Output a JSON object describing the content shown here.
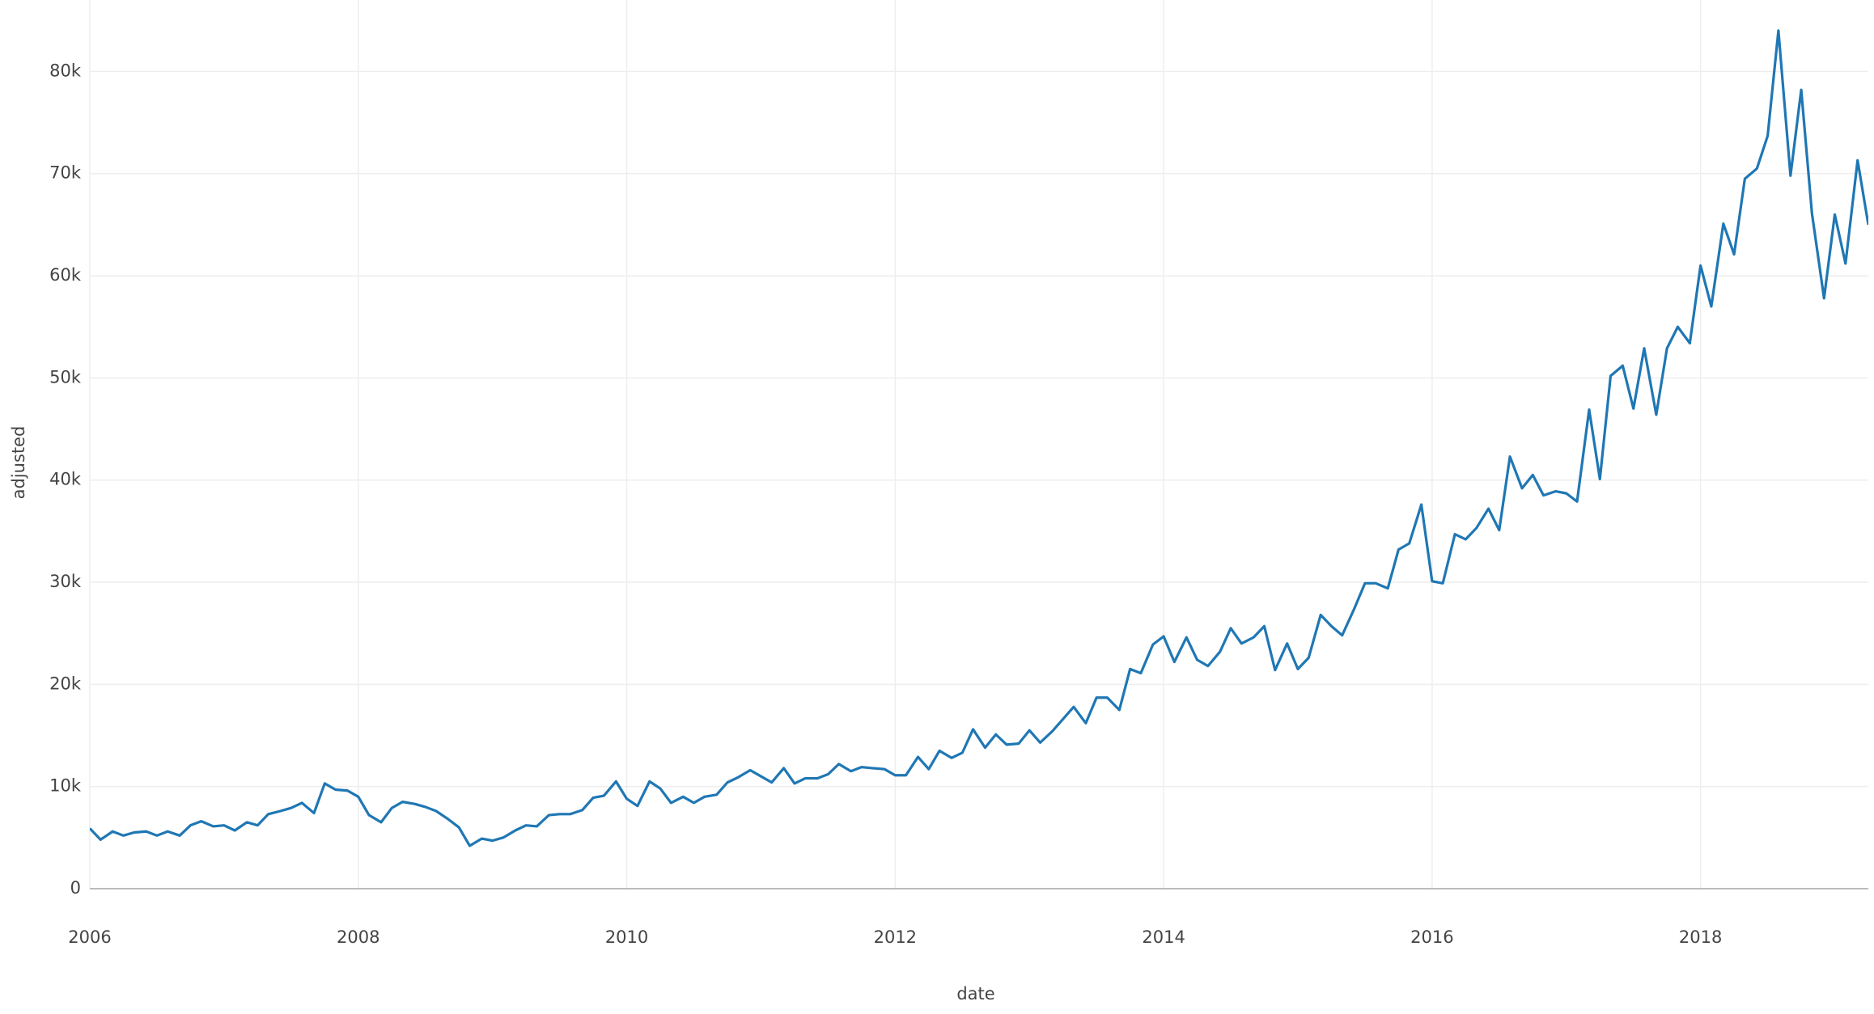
{
  "chart_data": {
    "type": "line",
    "x_label": "date",
    "y_label": "adjusted",
    "xlim": [
      2006,
      2019.25
    ],
    "xticks": [
      2006,
      2008,
      2010,
      2012,
      2014,
      2016,
      2018
    ],
    "ylim": [
      0,
      87000
    ],
    "yticks": [
      0,
      {
        "value": 10000,
        "label": "10k"
      },
      {
        "value": 20000,
        "label": "20k"
      },
      {
        "value": 30000,
        "label": "30k"
      },
      {
        "value": 40000,
        "label": "40k"
      },
      {
        "value": 50000,
        "label": "50k"
      },
      {
        "value": 60000,
        "label": "60k"
      },
      {
        "value": 70000,
        "label": "70k"
      },
      {
        "value": 80000,
        "label": "80k"
      }
    ],
    "grid": true,
    "x": [
      2006,
      2006.08,
      2006.17,
      2006.25,
      2006.33,
      2006.42,
      2006.5,
      2006.58,
      2006.67,
      2006.75,
      2006.83,
      2006.92,
      2007,
      2007.08,
      2007.17,
      2007.25,
      2007.33,
      2007.42,
      2007.5,
      2007.58,
      2007.67,
      2007.75,
      2007.83,
      2007.92,
      2008,
      2008.08,
      2008.17,
      2008.25,
      2008.33,
      2008.42,
      2008.5,
      2008.58,
      2008.67,
      2008.75,
      2008.83,
      2008.92,
      2009,
      2009.08,
      2009.17,
      2009.25,
      2009.33,
      2009.42,
      2009.5,
      2009.58,
      2009.67,
      2009.75,
      2009.83,
      2009.92,
      2010,
      2010.08,
      2010.17,
      2010.25,
      2010.33,
      2010.42,
      2010.5,
      2010.58,
      2010.67,
      2010.75,
      2010.83,
      2010.92,
      2011,
      2011.08,
      2011.17,
      2011.25,
      2011.33,
      2011.42,
      2011.5,
      2011.58,
      2011.67,
      2011.75,
      2011.83,
      2011.92,
      2012,
      2012.08,
      2012.17,
      2012.25,
      2012.33,
      2012.42,
      2012.5,
      2012.58,
      2012.67,
      2012.75,
      2012.83,
      2012.92,
      2013,
      2013.08,
      2013.17,
      2013.25,
      2013.33,
      2013.42,
      2013.5,
      2013.58,
      2013.67,
      2013.75,
      2013.83,
      2013.92,
      2014,
      2014.08,
      2014.17,
      2014.25,
      2014.33,
      2014.42,
      2014.5,
      2014.58,
      2014.67,
      2014.75,
      2014.83,
      2014.92,
      2015,
      2015.08,
      2015.17,
      2015.25,
      2015.33,
      2015.42,
      2015.5,
      2015.58,
      2015.67,
      2015.75,
      2015.83,
      2015.92,
      2016,
      2016.08,
      2016.17,
      2016.25,
      2016.33,
      2016.42,
      2016.5,
      2016.58,
      2016.67,
      2016.75,
      2016.83,
      2016.92,
      2017,
      2017.08,
      2017.17,
      2017.25,
      2017.33,
      2017.42,
      2017.5,
      2017.58,
      2017.67,
      2017.75,
      2017.83,
      2017.92,
      2018,
      2018.08,
      2018.17,
      2018.25,
      2018.33,
      2018.42,
      2018.5,
      2018.58,
      2018.67,
      2018.75,
      2018.83,
      2018.92,
      2019,
      2019.08,
      2019.17,
      2019.25
    ],
    "series": [
      {
        "name": "adjusted",
        "color": "#1f77b4",
        "values": [
          5900,
          4800,
          5600,
          5200,
          5500,
          5600,
          5200,
          5600,
          5200,
          6200,
          6600,
          6100,
          6200,
          5700,
          6500,
          6200,
          7300,
          7600,
          7900,
          8400,
          7400,
          10300,
          9700,
          9600,
          9000,
          7200,
          6500,
          7900,
          8500,
          8300,
          8000,
          7600,
          6800,
          6000,
          4200,
          4900,
          4700,
          5000,
          5700,
          6200,
          6100,
          7200,
          7300,
          7300,
          7700,
          8900,
          9100,
          10500,
          8800,
          8100,
          10500,
          9800,
          8400,
          9000,
          8400,
          9000,
          9200,
          10400,
          10900,
          11600,
          11000,
          10400,
          11800,
          10300,
          10800,
          10800,
          11200,
          12200,
          11500,
          11900,
          11800,
          11700,
          11100,
          11100,
          12900,
          11700,
          13500,
          12800,
          13300,
          15600,
          13800,
          15100,
          14100,
          14200,
          15500,
          14300,
          15400,
          16600,
          17800,
          16200,
          18700,
          18700,
          17500,
          21500,
          21100,
          23900,
          24700,
          22200,
          24600,
          22400,
          21800,
          23200,
          25500,
          24000,
          24600,
          25700,
          21400,
          24000,
          21500,
          22600,
          26800,
          25700,
          24800,
          27400,
          29900,
          29900,
          29400,
          33200,
          33800,
          37600,
          30100,
          29900,
          34700,
          34200,
          35300,
          37200,
          35100,
          42300,
          39200,
          40500,
          38500,
          38900,
          38700,
          37900,
          46900,
          40100,
          50200,
          51200,
          47000,
          52900,
          46400,
          52900,
          55000,
          53400,
          61000,
          57000,
          65100,
          62100,
          69500,
          70500,
          73700,
          84000,
          69800,
          78200,
          66100,
          57800,
          66000,
          61200,
          71300,
          65000
        ]
      }
    ]
  }
}
